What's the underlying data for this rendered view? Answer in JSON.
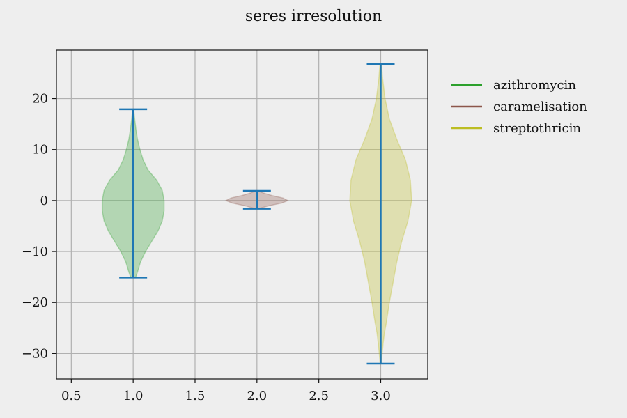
{
  "chart_data": {
    "type": "violin",
    "title": "seres irresolution",
    "xlabel": "",
    "ylabel": "",
    "xlim": [
      0.38,
      3.38
    ],
    "ylim": [
      -35.0,
      29.5
    ],
    "x_ticks": [
      0.5,
      1.0,
      1.5,
      2.0,
      2.5,
      3.0
    ],
    "x_tick_labels": [
      "0.5",
      "1.0",
      "1.5",
      "2.0",
      "2.5",
      "3.0"
    ],
    "y_ticks": [
      -30,
      -20,
      -10,
      0,
      10,
      20
    ],
    "y_tick_labels": [
      "−30",
      "−20",
      "−10",
      "0",
      "10",
      "20"
    ],
    "grid": true,
    "legend_position": "outside-top-right",
    "extrema_color": "#1f77b4",
    "series": [
      {
        "name": "azithromycin",
        "position": 1.0,
        "color": "#2ca02c",
        "min": -15.1,
        "max": 17.9,
        "half_width_max": 0.25,
        "profile": [
          [
            -15.1,
            0.02
          ],
          [
            -14,
            0.035
          ],
          [
            -12,
            0.06
          ],
          [
            -10,
            0.1
          ],
          [
            -8,
            0.15
          ],
          [
            -6,
            0.2
          ],
          [
            -4,
            0.235
          ],
          [
            -2,
            0.25
          ],
          [
            0,
            0.25
          ],
          [
            2,
            0.235
          ],
          [
            4,
            0.19
          ],
          [
            6,
            0.12
          ],
          [
            8,
            0.08
          ],
          [
            10,
            0.055
          ],
          [
            12,
            0.035
          ],
          [
            14,
            0.022
          ],
          [
            16,
            0.012
          ],
          [
            17.9,
            0.004
          ]
        ]
      },
      {
        "name": "caramelisation",
        "position": 2.0,
        "color": "#8c564b",
        "min": -1.6,
        "max": 1.9,
        "half_width_max": 0.25,
        "profile": [
          [
            -1.6,
            0.01
          ],
          [
            -1.0,
            0.1
          ],
          [
            -0.5,
            0.2
          ],
          [
            0,
            0.25
          ],
          [
            0.5,
            0.21
          ],
          [
            1.0,
            0.12
          ],
          [
            1.5,
            0.05
          ],
          [
            1.9,
            0.01
          ]
        ]
      },
      {
        "name": "streptothricin",
        "position": 3.0,
        "color": "#bcbd22",
        "min": -32.0,
        "max": 26.8,
        "half_width_max": 0.25,
        "profile": [
          [
            -32,
            0.005
          ],
          [
            -30,
            0.012
          ],
          [
            -28,
            0.02
          ],
          [
            -26,
            0.03
          ],
          [
            -24,
            0.045
          ],
          [
            -20,
            0.07
          ],
          [
            -16,
            0.1
          ],
          [
            -12,
            0.13
          ],
          [
            -8,
            0.17
          ],
          [
            -4,
            0.22
          ],
          [
            0,
            0.25
          ],
          [
            4,
            0.24
          ],
          [
            8,
            0.2
          ],
          [
            12,
            0.13
          ],
          [
            16,
            0.07
          ],
          [
            20,
            0.035
          ],
          [
            24,
            0.015
          ],
          [
            26.8,
            0.006
          ]
        ]
      }
    ]
  }
}
